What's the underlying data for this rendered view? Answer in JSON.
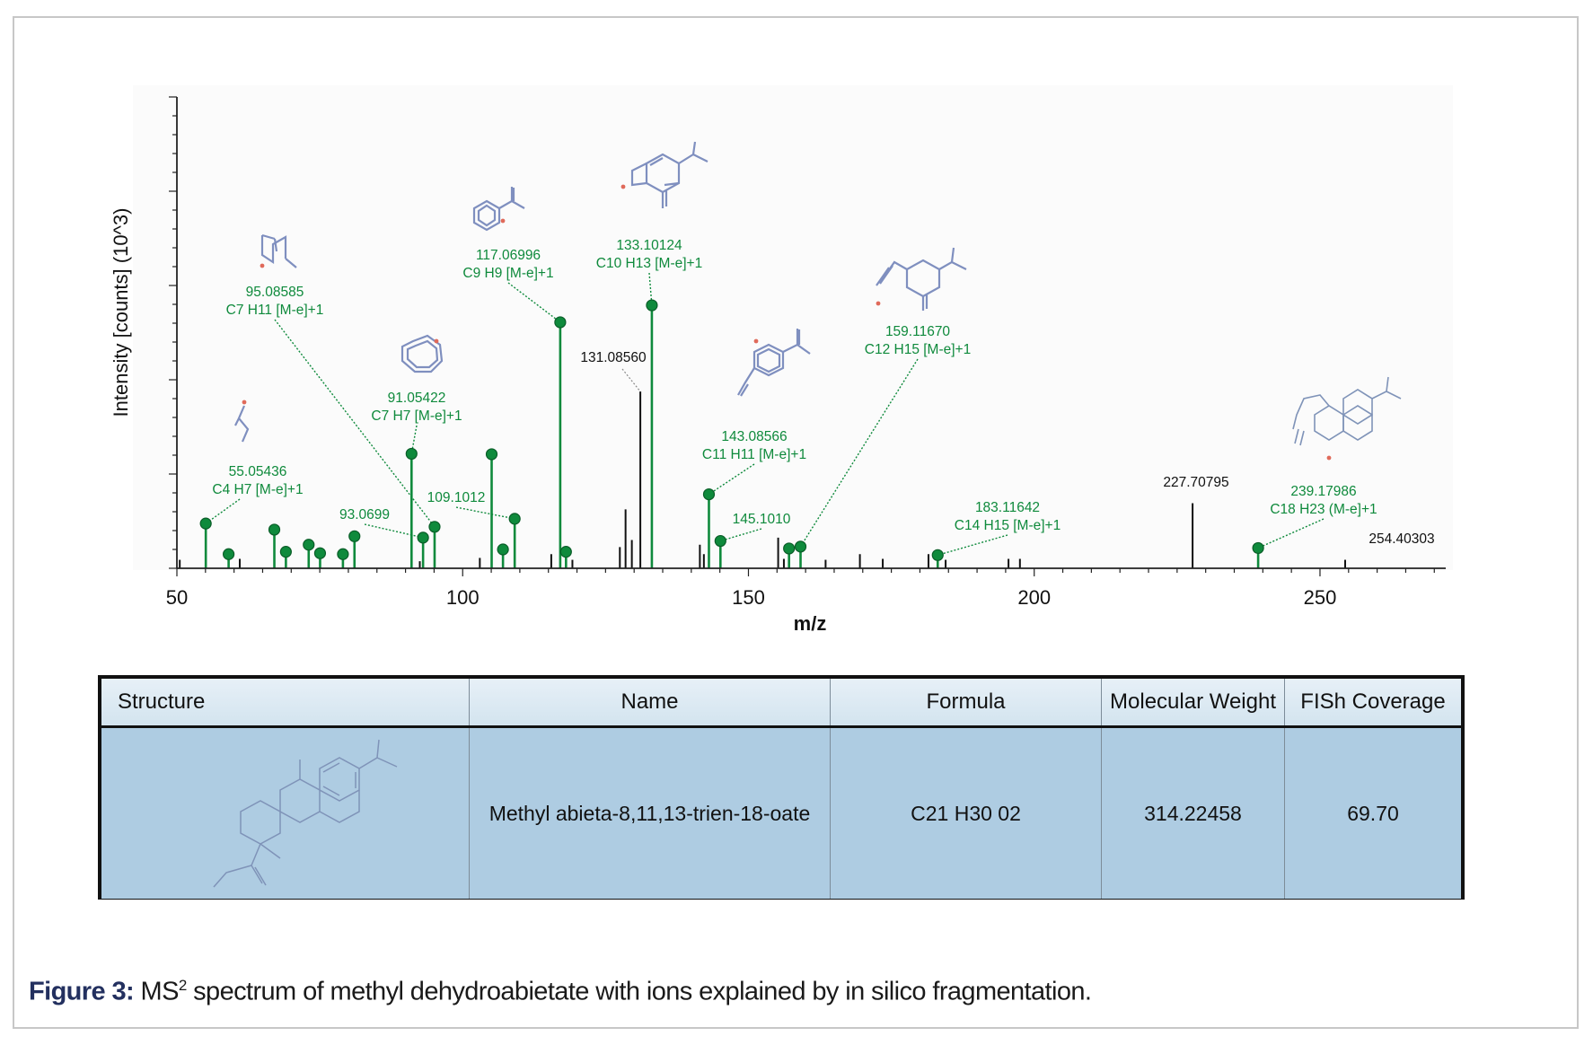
{
  "chart_data": {
    "type": "stem",
    "title": "",
    "xlabel": "m/z",
    "ylabel": "Intensity [counts] (10^3)",
    "xlim": [
      50,
      272
    ],
    "ylim": [
      0,
      1.0
    ],
    "x_ticks": [
      50,
      100,
      150,
      200,
      250
    ],
    "y_ticks": [
      0,
      0.2,
      0.4,
      0.6,
      0.8,
      1.0
    ],
    "y_tick_labels": [],
    "matched_peaks": [
      {
        "mz": 55.05436,
        "intensity": 0.095,
        "label": "55.05436",
        "formula": "C4 H7 [M-e]+1"
      },
      {
        "mz": 59.05,
        "intensity": 0.03
      },
      {
        "mz": 67.05,
        "intensity": 0.082
      },
      {
        "mz": 69.07,
        "intensity": 0.035
      },
      {
        "mz": 73.06,
        "intensity": 0.05
      },
      {
        "mz": 75.05,
        "intensity": 0.032
      },
      {
        "mz": 79.05,
        "intensity": 0.03
      },
      {
        "mz": 81.07,
        "intensity": 0.068
      },
      {
        "mz": 91.05422,
        "intensity": 0.243,
        "label": "91.05422",
        "formula": "C7 H7 [M-e]+1"
      },
      {
        "mz": 93.0699,
        "intensity": 0.065,
        "label": "93.0699",
        "formula": ""
      },
      {
        "mz": 95.08585,
        "intensity": 0.088,
        "label": "95.08585",
        "formula": "C7 H11 [M-e]+1"
      },
      {
        "mz": 105.07,
        "intensity": 0.242
      },
      {
        "mz": 107.05,
        "intensity": 0.04
      },
      {
        "mz": 109.1012,
        "intensity": 0.105,
        "label": "109.1012",
        "formula": ""
      },
      {
        "mz": 117.06996,
        "intensity": 0.522,
        "label": "117.06996",
        "formula": "C9 H9 [M-e]+1"
      },
      {
        "mz": 118.08,
        "intensity": 0.035
      },
      {
        "mz": 133.10124,
        "intensity": 0.558,
        "label": "133.10124",
        "formula": "C10 H13 [M-e]+1"
      },
      {
        "mz": 143.08566,
        "intensity": 0.157,
        "label": "143.08566",
        "formula": "C11 H11 [M-e]+1"
      },
      {
        "mz": 145.101,
        "intensity": 0.058,
        "label": "145.1010",
        "formula": ""
      },
      {
        "mz": 157.1,
        "intensity": 0.042
      },
      {
        "mz": 159.1167,
        "intensity": 0.046,
        "label": "159.11670",
        "formula": "C12 H15 [M-e]+1"
      },
      {
        "mz": 183.11642,
        "intensity": 0.028,
        "label": "183.11642",
        "formula": "C14 H15 [M-e]+1"
      },
      {
        "mz": 239.17986,
        "intensity": 0.043,
        "label": "239.17986",
        "formula": "C18 H23 (M-e]+1"
      }
    ],
    "unmatched_peaks": [
      {
        "mz": 50.5,
        "intensity": 0.018
      },
      {
        "mz": 61.0,
        "intensity": 0.02
      },
      {
        "mz": 92.5,
        "intensity": 0.015
      },
      {
        "mz": 103.0,
        "intensity": 0.022
      },
      {
        "mz": 115.5,
        "intensity": 0.03
      },
      {
        "mz": 119.2,
        "intensity": 0.018
      },
      {
        "mz": 127.5,
        "intensity": 0.045
      },
      {
        "mz": 128.5,
        "intensity": 0.125
      },
      {
        "mz": 129.6,
        "intensity": 0.06
      },
      {
        "mz": 131.0856,
        "intensity": 0.375,
        "label": "131.08560"
      },
      {
        "mz": 141.5,
        "intensity": 0.05
      },
      {
        "mz": 142.2,
        "intensity": 0.03
      },
      {
        "mz": 155.2,
        "intensity": 0.065
      },
      {
        "mz": 156.2,
        "intensity": 0.02
      },
      {
        "mz": 163.5,
        "intensity": 0.018
      },
      {
        "mz": 169.5,
        "intensity": 0.03
      },
      {
        "mz": 173.5,
        "intensity": 0.02
      },
      {
        "mz": 181.5,
        "intensity": 0.03
      },
      {
        "mz": 184.5,
        "intensity": 0.018
      },
      {
        "mz": 195.5,
        "intensity": 0.02
      },
      {
        "mz": 197.5,
        "intensity": 0.02
      },
      {
        "mz": 227.70795,
        "intensity": 0.138,
        "label": "227.70795"
      },
      {
        "mz": 254.40303,
        "intensity": 0.018,
        "label": "254.40303"
      }
    ]
  },
  "table": {
    "headers": [
      "Structure",
      "Name",
      "Formula",
      "Molecular Weight",
      "FISh Coverage"
    ],
    "row": {
      "name": "Methyl abieta-8,11,13-trien-18-oate",
      "formula": "C21 H30 02",
      "molecular_weight": "314.22458",
      "fish_coverage": "69.70"
    }
  },
  "caption": {
    "figure_label": "Figure 3:",
    "text_before_sup": "MS",
    "superscript": "2",
    "text_after_sup": " spectrum of methyl dehydroabietate with ions explained by in silico fragmentation."
  },
  "colors": {
    "matched": "#0f8a3c",
    "unmatched": "#111111",
    "structure": "#7f8fbf",
    "table_row": "#aecce2",
    "caption_label": "#23305f"
  }
}
